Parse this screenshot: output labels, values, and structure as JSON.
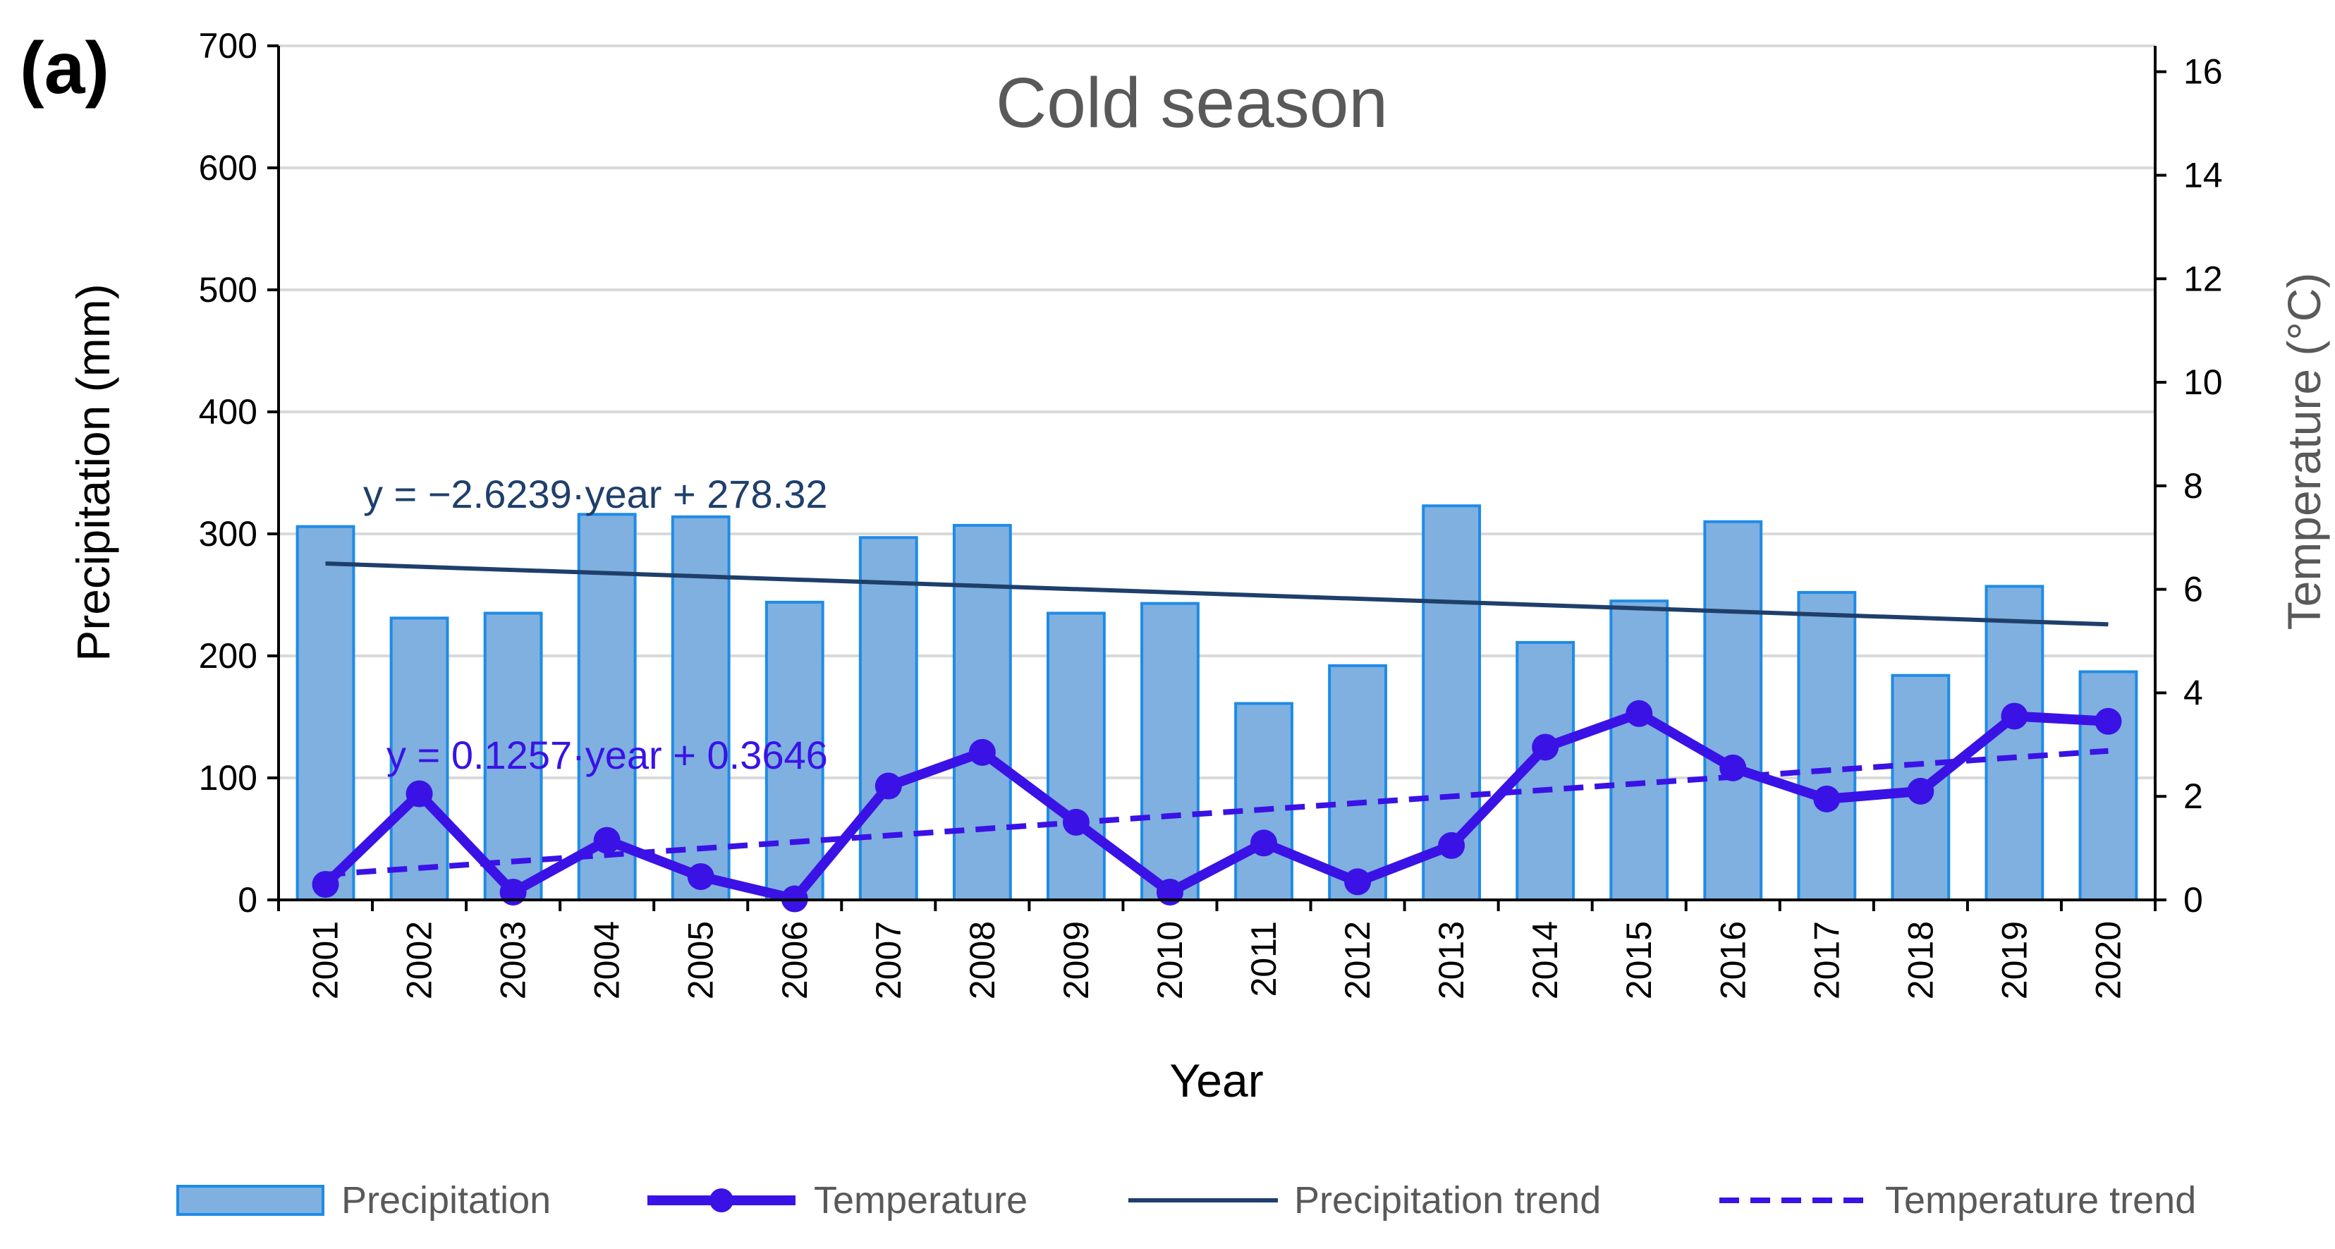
{
  "panel_label": "(a)",
  "chart_data": {
    "type": "bar+line",
    "title": "Cold season",
    "xlabel": "Year",
    "ylabel_left": "Precipitation (mm)",
    "ylabel_right": "Temperature (°C)",
    "ylim_left": [
      0,
      700
    ],
    "ylim_right": [
      0,
      16.5
    ],
    "yticks_left": [
      0,
      100,
      200,
      300,
      400,
      500,
      600,
      700
    ],
    "yticks_right": [
      0,
      2,
      4,
      6,
      8,
      10,
      12,
      14,
      16
    ],
    "grid": true,
    "legend_position": "bottom",
    "categories": [
      "2001",
      "2002",
      "2003",
      "2004",
      "2005",
      "2006",
      "2007",
      "2008",
      "2009",
      "2010",
      "2011",
      "2012",
      "2013",
      "2014",
      "2015",
      "2016",
      "2017",
      "2018",
      "2019",
      "2020"
    ],
    "series": [
      {
        "name": "Precipitation",
        "type": "bar",
        "axis": "left",
        "color": "#7FB0DF",
        "edge_color": "#1F8BE6",
        "values": [
          306,
          231,
          235,
          316,
          314,
          244,
          297,
          307,
          235,
          243,
          161,
          192,
          323,
          211,
          245,
          310,
          252,
          184,
          257,
          187
        ]
      },
      {
        "name": "Temperature",
        "type": "line",
        "axis": "right",
        "color": "#3A12E6",
        "values": [
          0.3,
          2.05,
          0.15,
          1.15,
          0.45,
          0.02,
          2.2,
          2.85,
          1.5,
          0.15,
          1.1,
          0.35,
          1.05,
          2.95,
          3.6,
          2.55,
          1.95,
          2.1,
          3.55,
          3.45
        ]
      }
    ],
    "trends": [
      {
        "name": "Precipitation trend",
        "axis": "left",
        "color": "#1F3F6B",
        "style": "solid",
        "slope": -2.6239,
        "intercept": 278.32,
        "equation": "y = −2.6239·year + 278.32"
      },
      {
        "name": "Temperature trend",
        "axis": "right",
        "color": "#3A12E6",
        "style": "dashed",
        "slope": 0.1257,
        "intercept": 0.3646,
        "equation": "y = 0.1257·year + 0.3646"
      }
    ]
  }
}
